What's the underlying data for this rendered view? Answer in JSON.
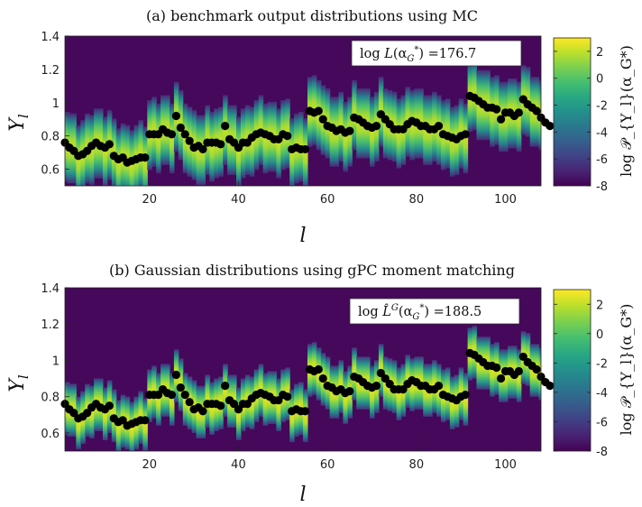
{
  "chart_data": [
    {
      "type": "heatmap",
      "title": "(a) benchmark output distributions using MC",
      "xlabel": "l",
      "ylabel": "Y_l",
      "xlim": [
        1,
        108
      ],
      "ylim": [
        0.5,
        1.4
      ],
      "xticks": [
        "20",
        "40",
        "60",
        "80",
        "100"
      ],
      "yticks": [
        "0.6",
        "0.8",
        "1",
        "1.2",
        "1.4"
      ],
      "colorbar": {
        "label": "log 𝒫_{Y_l}(α_G*)",
        "ticks": [
          "2",
          "0",
          "-2",
          "-4",
          "-6",
          "-8"
        ],
        "range": [
          -8,
          3
        ],
        "colormap": "viridis"
      },
      "annotation": {
        "prefix": "log ",
        "symbol": "L",
        "args": "(α",
        "sub": "G",
        "sup": "*",
        "suffix": ") =176.7"
      },
      "markers": "black dots",
      "spread": 0.13,
      "y": [
        0.76,
        0.73,
        0.71,
        0.68,
        0.69,
        0.71,
        0.74,
        0.76,
        0.74,
        0.73,
        0.75,
        0.68,
        0.66,
        0.67,
        0.64,
        0.65,
        0.66,
        0.67,
        0.67,
        0.81,
        0.81,
        0.81,
        0.84,
        0.82,
        0.81,
        0.92,
        0.85,
        0.81,
        0.77,
        0.73,
        0.74,
        0.72,
        0.76,
        0.76,
        0.76,
        0.75,
        0.86,
        0.78,
        0.76,
        0.73,
        0.76,
        0.76,
        0.79,
        0.81,
        0.82,
        0.81,
        0.8,
        0.78,
        0.78,
        0.81,
        0.8,
        0.72,
        0.73,
        0.72,
        0.72,
        0.95,
        0.94,
        0.95,
        0.9,
        0.86,
        0.85,
        0.83,
        0.84,
        0.82,
        0.83,
        0.91,
        0.9,
        0.88,
        0.86,
        0.85,
        0.86,
        0.93,
        0.9,
        0.87,
        0.84,
        0.84,
        0.84,
        0.87,
        0.89,
        0.88,
        0.86,
        0.86,
        0.84,
        0.84,
        0.86,
        0.81,
        0.8,
        0.79,
        0.78,
        0.8,
        0.81,
        1.04,
        1.03,
        1.01,
        0.99,
        0.97,
        0.97,
        0.96,
        0.9,
        0.94,
        0.94,
        0.92,
        0.94,
        1.02,
        0.99,
        0.97,
        0.95,
        0.91,
        0.88,
        0.86
      ]
    },
    {
      "type": "heatmap",
      "title": "(b) Gaussian distributions using gPC moment matching",
      "xlabel": "l",
      "ylabel": "Y_l",
      "xlim": [
        1,
        108
      ],
      "ylim": [
        0.5,
        1.4
      ],
      "xticks": [
        "20",
        "40",
        "60",
        "80",
        "100"
      ],
      "yticks": [
        "0.6",
        "0.8",
        "1",
        "1.2",
        "1.4"
      ],
      "colorbar": {
        "label": "log 𝒫_{Y_l}(α_G*)",
        "ticks": [
          "2",
          "0",
          "-2",
          "-4",
          "-6",
          "-8"
        ],
        "range": [
          -8,
          3
        ],
        "colormap": "viridis"
      },
      "annotation": {
        "prefix": "log ",
        "symbol": "L̂",
        "symsup": "G",
        "args": "(α",
        "sub": "G",
        "sup": "*",
        "suffix": ") =188.5"
      },
      "markers": "black dots",
      "spread": 0.09,
      "y": [
        0.76,
        0.73,
        0.71,
        0.68,
        0.69,
        0.71,
        0.74,
        0.76,
        0.74,
        0.73,
        0.75,
        0.68,
        0.66,
        0.67,
        0.64,
        0.65,
        0.66,
        0.67,
        0.67,
        0.81,
        0.81,
        0.81,
        0.84,
        0.82,
        0.81,
        0.92,
        0.85,
        0.81,
        0.77,
        0.73,
        0.74,
        0.72,
        0.76,
        0.76,
        0.76,
        0.75,
        0.86,
        0.78,
        0.76,
        0.73,
        0.76,
        0.76,
        0.79,
        0.81,
        0.82,
        0.81,
        0.8,
        0.78,
        0.78,
        0.81,
        0.8,
        0.72,
        0.73,
        0.72,
        0.72,
        0.95,
        0.94,
        0.95,
        0.9,
        0.86,
        0.85,
        0.83,
        0.84,
        0.82,
        0.83,
        0.91,
        0.9,
        0.88,
        0.86,
        0.85,
        0.86,
        0.93,
        0.9,
        0.87,
        0.84,
        0.84,
        0.84,
        0.87,
        0.89,
        0.88,
        0.86,
        0.86,
        0.84,
        0.84,
        0.86,
        0.81,
        0.8,
        0.79,
        0.78,
        0.8,
        0.81,
        1.04,
        1.03,
        1.01,
        0.99,
        0.97,
        0.97,
        0.96,
        0.9,
        0.94,
        0.94,
        0.92,
        0.94,
        1.02,
        0.99,
        0.97,
        0.95,
        0.91,
        0.88,
        0.86
      ]
    }
  ]
}
